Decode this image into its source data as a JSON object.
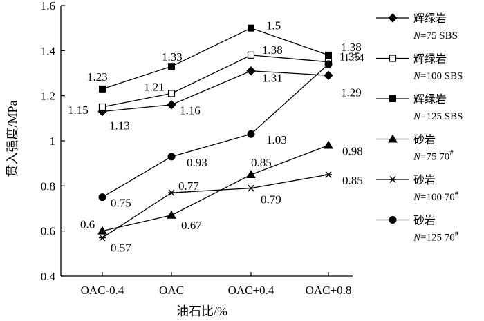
{
  "chart_data": {
    "type": "line",
    "xlabel": "油石比/%",
    "ylabel": "贯入强度/MPa",
    "categories": [
      "OAC-0.4",
      "OAC",
      "OAC+0.4",
      "OAC+0.8"
    ],
    "ylim": [
      0.4,
      1.6
    ],
    "yticks": [
      "0.4",
      "0.6",
      "0.8",
      "1",
      "1.2",
      "1.4",
      "1.6"
    ],
    "grid": false,
    "legend_position": "right",
    "series": [
      {
        "name": "辉绿岩",
        "subname_italic": "N",
        "subname_rest": "=75 SBS",
        "sup": "",
        "marker": "diamond",
        "values": [
          1.13,
          1.16,
          1.31,
          1.29
        ],
        "labels": [
          "1.13",
          "1.16",
          "1.31",
          "1.29"
        ]
      },
      {
        "name": "辉绿岩",
        "subname_italic": "N",
        "subname_rest": "=100 SBS",
        "sup": "",
        "marker": "square-open",
        "values": [
          1.15,
          1.21,
          1.38,
          1.35
        ],
        "labels": [
          "1.15",
          "1.21",
          "1.38",
          "1.35"
        ]
      },
      {
        "name": "辉绿岩",
        "subname_italic": "N",
        "subname_rest": "=125 SBS",
        "sup": "",
        "marker": "square",
        "values": [
          1.23,
          1.33,
          1.5,
          1.38
        ],
        "labels": [
          "1.23",
          "1.33",
          "1.5",
          "1.38"
        ]
      },
      {
        "name": "砂岩",
        "subname_italic": "N",
        "subname_rest": "=75 70",
        "sup": "#",
        "marker": "triangle",
        "values": [
          0.6,
          0.67,
          0.85,
          0.98
        ],
        "labels": [
          "0.6",
          "0.67",
          "0.85",
          "0.98"
        ]
      },
      {
        "name": "砂岩",
        "subname_italic": "N",
        "subname_rest": "=100 70",
        "sup": "#",
        "marker": "star",
        "values": [
          0.57,
          0.77,
          0.79,
          0.85
        ],
        "labels": [
          "0.57",
          "0.77",
          "0.79",
          "0.85"
        ]
      },
      {
        "name": "砂岩",
        "subname_italic": "N",
        "subname_rest": "=125 70",
        "sup": "#",
        "marker": "circle",
        "values": [
          0.75,
          0.93,
          1.03,
          1.34
        ],
        "labels": [
          "0.75",
          "0.93",
          "1.03",
          "1.34"
        ]
      }
    ]
  }
}
